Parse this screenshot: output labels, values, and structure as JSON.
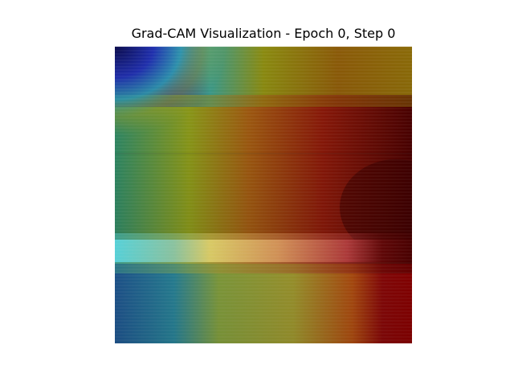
{
  "figure": {
    "title": "Grad-CAM Visualization - Epoch 0, Step 0"
  }
}
